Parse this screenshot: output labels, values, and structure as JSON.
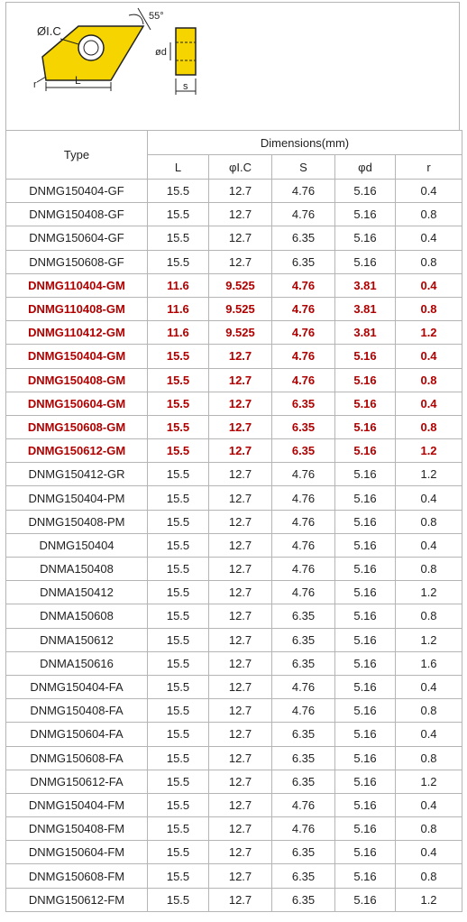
{
  "diagram": {
    "label_ic": "ØI.C",
    "label_angle": "55°",
    "label_r": "r",
    "label_L": "L",
    "label_d": "ød",
    "label_s": "s",
    "colors": {
      "insert_fill": "#f5d400",
      "outline": "#222222"
    }
  },
  "table": {
    "header_type": "Type",
    "header_dimensions": "Dimensions(mm)",
    "columns": [
      "L",
      "φI.C",
      "S",
      "φd",
      "r"
    ],
    "highlight_color": "#b00000",
    "rows": [
      {
        "type": "DNMG150404-GF",
        "L": "15.5",
        "ic": "12.7",
        "S": "4.76",
        "d": "5.16",
        "r": "0.4",
        "hl": false
      },
      {
        "type": "DNMG150408-GF",
        "L": "15.5",
        "ic": "12.7",
        "S": "4.76",
        "d": "5.16",
        "r": "0.8",
        "hl": false
      },
      {
        "type": "DNMG150604-GF",
        "L": "15.5",
        "ic": "12.7",
        "S": "6.35",
        "d": "5.16",
        "r": "0.4",
        "hl": false
      },
      {
        "type": "DNMG150608-GF",
        "L": "15.5",
        "ic": "12.7",
        "S": "6.35",
        "d": "5.16",
        "r": "0.8",
        "hl": false
      },
      {
        "type": "DNMG110404-GM",
        "L": "11.6",
        "ic": "9.525",
        "S": "4.76",
        "d": "3.81",
        "r": "0.4",
        "hl": true
      },
      {
        "type": "DNMG110408-GM",
        "L": "11.6",
        "ic": "9.525",
        "S": "4.76",
        "d": "3.81",
        "r": "0.8",
        "hl": true
      },
      {
        "type": "DNMG110412-GM",
        "L": "11.6",
        "ic": "9.525",
        "S": "4.76",
        "d": "3.81",
        "r": "1.2",
        "hl": true
      },
      {
        "type": "DNMG150404-GM",
        "L": "15.5",
        "ic": "12.7",
        "S": "4.76",
        "d": "5.16",
        "r": "0.4",
        "hl": true
      },
      {
        "type": "DNMG150408-GM",
        "L": "15.5",
        "ic": "12.7",
        "S": "4.76",
        "d": "5.16",
        "r": "0.8",
        "hl": true
      },
      {
        "type": "DNMG150604-GM",
        "L": "15.5",
        "ic": "12.7",
        "S": "6.35",
        "d": "5.16",
        "r": "0.4",
        "hl": true
      },
      {
        "type": "DNMG150608-GM",
        "L": "15.5",
        "ic": "12.7",
        "S": "6.35",
        "d": "5.16",
        "r": "0.8",
        "hl": true
      },
      {
        "type": "DNMG150612-GM",
        "L": "15.5",
        "ic": "12.7",
        "S": "6.35",
        "d": "5.16",
        "r": "1.2",
        "hl": true
      },
      {
        "type": "DNMG150412-GR",
        "L": "15.5",
        "ic": "12.7",
        "S": "4.76",
        "d": "5.16",
        "r": "1.2",
        "hl": false
      },
      {
        "type": "DNMG150404-PM",
        "L": "15.5",
        "ic": "12.7",
        "S": "4.76",
        "d": "5.16",
        "r": "0.4",
        "hl": false
      },
      {
        "type": "DNMG150408-PM",
        "L": "15.5",
        "ic": "12.7",
        "S": "4.76",
        "d": "5.16",
        "r": "0.8",
        "hl": false
      },
      {
        "type": "DNMG150404",
        "L": "15.5",
        "ic": "12.7",
        "S": "4.76",
        "d": "5.16",
        "r": "0.4",
        "hl": false
      },
      {
        "type": "DNMA150408",
        "L": "15.5",
        "ic": "12.7",
        "S": "4.76",
        "d": "5.16",
        "r": "0.8",
        "hl": false
      },
      {
        "type": "DNMA150412",
        "L": "15.5",
        "ic": "12.7",
        "S": "4.76",
        "d": "5.16",
        "r": "1.2",
        "hl": false
      },
      {
        "type": "DNMA150608",
        "L": "15.5",
        "ic": "12.7",
        "S": "6.35",
        "d": "5.16",
        "r": "0.8",
        "hl": false
      },
      {
        "type": "DNMA150612",
        "L": "15.5",
        "ic": "12.7",
        "S": "6.35",
        "d": "5.16",
        "r": "1.2",
        "hl": false
      },
      {
        "type": "DNMA150616",
        "L": "15.5",
        "ic": "12.7",
        "S": "6.35",
        "d": "5.16",
        "r": "1.6",
        "hl": false
      },
      {
        "type": "DNMG150404-FA",
        "L": "15.5",
        "ic": "12.7",
        "S": "4.76",
        "d": "5.16",
        "r": "0.4",
        "hl": false
      },
      {
        "type": "DNMG150408-FA",
        "L": "15.5",
        "ic": "12.7",
        "S": "4.76",
        "d": "5.16",
        "r": "0.8",
        "hl": false
      },
      {
        "type": "DNMG150604-FA",
        "L": "15.5",
        "ic": "12.7",
        "S": "6.35",
        "d": "5.16",
        "r": "0.4",
        "hl": false
      },
      {
        "type": "DNMG150608-FA",
        "L": "15.5",
        "ic": "12.7",
        "S": "6.35",
        "d": "5.16",
        "r": "0.8",
        "hl": false
      },
      {
        "type": "DNMG150612-FA",
        "L": "15.5",
        "ic": "12.7",
        "S": "6.35",
        "d": "5.16",
        "r": "1.2",
        "hl": false
      },
      {
        "type": "DNMG150404-FM",
        "L": "15.5",
        "ic": "12.7",
        "S": "4.76",
        "d": "5.16",
        "r": "0.4",
        "hl": false
      },
      {
        "type": "DNMG150408-FM",
        "L": "15.5",
        "ic": "12.7",
        "S": "4.76",
        "d": "5.16",
        "r": "0.8",
        "hl": false
      },
      {
        "type": "DNMG150604-FM",
        "L": "15.5",
        "ic": "12.7",
        "S": "6.35",
        "d": "5.16",
        "r": "0.4",
        "hl": false
      },
      {
        "type": "DNMG150608-FM",
        "L": "15.5",
        "ic": "12.7",
        "S": "6.35",
        "d": "5.16",
        "r": "0.8",
        "hl": false
      },
      {
        "type": "DNMG150612-FM",
        "L": "15.5",
        "ic": "12.7",
        "S": "6.35",
        "d": "5.16",
        "r": "1.2",
        "hl": false
      }
    ]
  }
}
